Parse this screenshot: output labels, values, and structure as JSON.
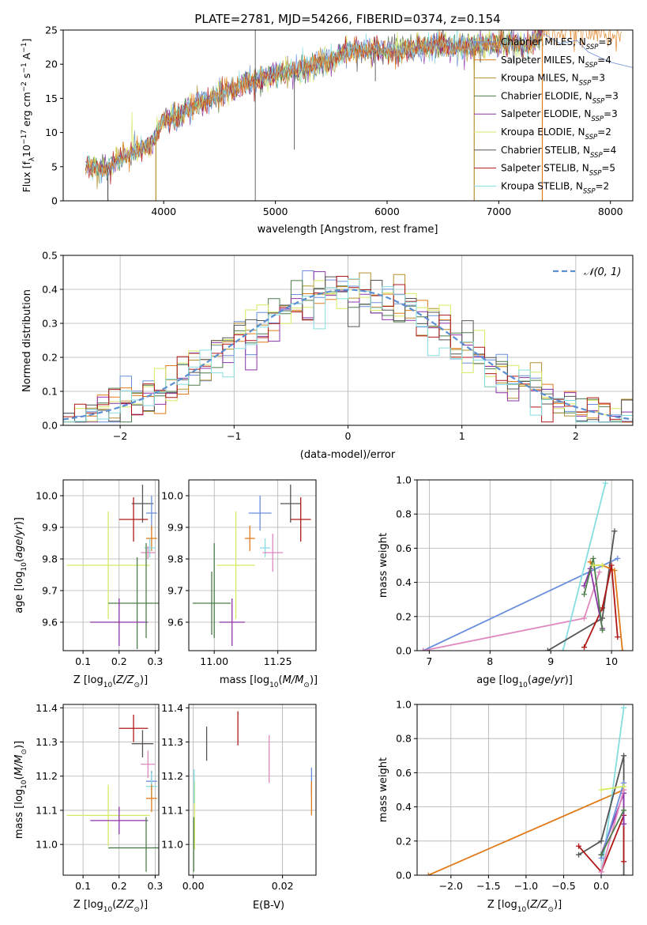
{
  "figure": {
    "title": "PLATE=2781, MJD=54266, FIBERID=0374, z=0.154"
  },
  "legend_entries": [
    {
      "label": "Chabrier MILES, N",
      "sub": "SSP",
      "suffix": "=3",
      "color": "#6a8fdc"
    },
    {
      "label": "Salpeter MILES, N",
      "sub": "SSP",
      "suffix": "=4",
      "color": "#e07b1a"
    },
    {
      "label": "Kroupa MILES, N",
      "sub": "SSP",
      "suffix": "=3",
      "color": "#b5902e"
    },
    {
      "label": "Chabrier ELODIE, N",
      "sub": "SSP",
      "suffix": "=3",
      "color": "#4d7d4a"
    },
    {
      "label": "Salpeter ELODIE, N",
      "sub": "SSP",
      "suffix": "=3",
      "color": "#8e35a8"
    },
    {
      "label": "Kroupa ELODIE, N",
      "sub": "SSP",
      "suffix": "=2",
      "color": "#d6ea64"
    },
    {
      "label": "Chabrier STELIB, N",
      "sub": "SSP",
      "suffix": "=4",
      "color": "#555555"
    },
    {
      "label": "Salpeter STELIB, N",
      "sub": "SSP",
      "suffix": "=5",
      "color": "#b01818"
    },
    {
      "label": "Kroupa STELIB, N",
      "sub": "SSP",
      "suffix": "=2",
      "color": "#86dde0"
    }
  ],
  "extra_colors": {
    "pink": "#e088bf"
  },
  "chart_data": [
    {
      "id": "spectrum",
      "type": "line",
      "xlabel": "wavelength [Angstrom, rest frame]",
      "ylabel_parts": [
        "Flux [f",
        "λ",
        "10",
        "−17",
        " erg cm",
        "−2",
        " s",
        "−1",
        " A",
        "−1",
        "]"
      ],
      "xlim": [
        3100,
        8200
      ],
      "ylim": [
        0,
        25
      ],
      "xticks": [
        4000,
        5000,
        6000,
        7000,
        8000
      ],
      "yticks": [
        0,
        5,
        10,
        15,
        20,
        25
      ],
      "grid": false,
      "legend": "top-right",
      "continuum": {
        "x": [
          3300,
          3500,
          3700,
          3900,
          4000,
          4100,
          4300,
          4500,
          4700,
          4900,
          5100,
          5300,
          5500,
          5700,
          5900,
          6100,
          6300,
          6500,
          6700,
          6900,
          7100,
          7250,
          7400
        ],
        "y": [
          5,
          4.8,
          6.8,
          8.5,
          12,
          12.3,
          14,
          15.5,
          17,
          18,
          18.8,
          19.5,
          21,
          22,
          22,
          22,
          22.5,
          22.8,
          22.5,
          23,
          23.2,
          22.5,
          24.5
        ]
      },
      "drops": [
        {
          "x": 3500,
          "to": 0
        },
        {
          "x": 3930,
          "to": 0
        },
        {
          "x": 6780,
          "to": 0
        },
        {
          "x": 7390,
          "to": 0
        }
      ],
      "spike_lines": [
        {
          "x": 4820,
          "from": 0,
          "to": 25
        }
      ],
      "absorption": [
        {
          "x": 5170,
          "to": 7.5
        },
        {
          "x": 5895,
          "to": 17.5
        }
      ]
    },
    {
      "id": "residuals",
      "type": "step",
      "xlabel": "(data-model)/error",
      "ylabel": "Normed distribution",
      "xlim": [
        -2.5,
        2.5
      ],
      "ylim": [
        0,
        0.5
      ],
      "xticks": [
        -2,
        -1,
        0,
        1,
        2
      ],
      "yticks": [
        0,
        0.1,
        0.2,
        0.3,
        0.4,
        0.5
      ],
      "grid": true,
      "legend": "top-right",
      "legend_label": "𝒩(0, 1)",
      "bin_width": 0.1
    },
    {
      "id": "age-vs-Z",
      "type": "errorbar",
      "xlabel": "Z [log10(Z/Z⊙)]",
      "ylabel": "age  [log10(age/yr)]",
      "xlim": [
        0.045,
        0.31
      ],
      "ylim": [
        9.51,
        10.05
      ],
      "xticks": [
        0.1,
        0.2,
        0.3
      ],
      "yticks": [
        9.6,
        9.7,
        9.8,
        9.9,
        10.0
      ],
      "points": [
        {
          "c": "#555555",
          "x": 0.265,
          "xe": 0.03,
          "y": 9.975,
          "ye": 0.06
        },
        {
          "c": "#b01818",
          "x": 0.24,
          "xe": 0.04,
          "y": 9.925,
          "ye": 0.07
        },
        {
          "c": "#6a8fdc",
          "x": 0.29,
          "xe": 0.015,
          "y": 9.945,
          "ye": 0.055
        },
        {
          "c": "#e07b1a",
          "x": 0.29,
          "xe": 0.015,
          "y": 9.865,
          "ye": 0.04
        },
        {
          "c": "#86dde0",
          "x": 0.285,
          "xe": 0.015,
          "y": 9.835,
          "ye": 0.03
        },
        {
          "c": "#e088bf",
          "x": 0.28,
          "xe": 0.02,
          "y": 9.82,
          "ye": 0.02
        },
        {
          "c": "#d6ea64",
          "x": 0.17,
          "xe": 0.115,
          "y": 9.78,
          "ye": 0.17
        },
        {
          "c": "#4d7d4a",
          "x": 0.25,
          "xe": 0.08,
          "y": 9.66,
          "ye": 0.145
        },
        {
          "c": "#8e35a8",
          "x": 0.2,
          "xe": 0.08,
          "y": 9.6,
          "ye": 0.075
        },
        {
          "c": "#4d7d4a",
          "x": 0.275,
          "xe": 0.0,
          "y": 9.7,
          "ye": 0.15
        }
      ]
    },
    {
      "id": "age-vs-mass",
      "type": "errorbar",
      "xlabel": "mass [log10(M/M⊙)]",
      "xlim": [
        10.9,
        11.4
      ],
      "ylim": [
        9.51,
        10.05
      ],
      "xticks": [
        11.0,
        11.25
      ],
      "yticks": [
        9.6,
        9.7,
        9.8,
        9.9,
        10.0
      ],
      "points": [
        {
          "c": "#555555",
          "x": 11.3,
          "xe": 0.04,
          "y": 9.975,
          "ye": 0.06
        },
        {
          "c": "#b01818",
          "x": 11.34,
          "xe": 0.04,
          "y": 9.925,
          "ye": 0.07
        },
        {
          "c": "#6a8fdc",
          "x": 11.18,
          "xe": 0.045,
          "y": 9.945,
          "ye": 0.055
        },
        {
          "c": "#e07b1a",
          "x": 11.14,
          "xe": 0.02,
          "y": 9.865,
          "ye": 0.04
        },
        {
          "c": "#86dde0",
          "x": 11.2,
          "xe": 0.02,
          "y": 9.835,
          "ye": 0.03
        },
        {
          "c": "#e088bf",
          "x": 11.23,
          "xe": 0.04,
          "y": 9.82,
          "ye": 0.06
        },
        {
          "c": "#d6ea64",
          "x": 11.085,
          "xe": 0.075,
          "y": 9.78,
          "ye": 0.17
        },
        {
          "c": "#4d7d4a",
          "x": 10.99,
          "xe": 0.075,
          "y": 9.66,
          "ye": 0.1
        },
        {
          "c": "#8e35a8",
          "x": 11.07,
          "xe": 0.05,
          "y": 9.6,
          "ye": 0.075
        },
        {
          "c": "#4d7d4a",
          "x": 11.0,
          "xe": 0.0,
          "y": 9.7,
          "ye": 0.15
        }
      ]
    },
    {
      "id": "weight-vs-age",
      "type": "line",
      "xlabel": "age  [log10(age/yr)]",
      "ylabel": "mass weight",
      "xlim": [
        6.8,
        10.35
      ],
      "ylim": [
        0,
        1
      ],
      "xticks": [
        7,
        8,
        9,
        10
      ],
      "yticks": [
        0.0,
        0.2,
        0.4,
        0.6,
        0.8,
        1.0
      ],
      "grid": true,
      "series": [
        {
          "c": "#6a8fdc",
          "x": [
            6.9,
            10.1
          ],
          "y": [
            0.0,
            0.54
          ]
        },
        {
          "c": "#e088bf",
          "x": [
            6.9,
            9.55,
            9.8
          ],
          "y": [
            0.0,
            0.19,
            0.46
          ]
        },
        {
          "c": "#86dde0",
          "x": [
            9.2,
            9.9
          ],
          "y": [
            0.0,
            0.98
          ]
        },
        {
          "c": "#555555",
          "x": [
            8.95,
            9.85,
            10.05
          ],
          "y": [
            0.0,
            0.19,
            0.7
          ]
        },
        {
          "c": "#e07b1a",
          "x": [
            9.65,
            9.7,
            9.85,
            10.05,
            10.18
          ],
          "y": [
            0.52,
            0.5,
            0.5,
            0.47,
            0.0
          ]
        },
        {
          "c": "#b01818",
          "x": [
            9.55,
            9.85,
            10.0,
            10.1
          ],
          "y": [
            0.02,
            0.25,
            0.5,
            0.08
          ]
        },
        {
          "c": "#8e35a8",
          "x": [
            9.55,
            9.65,
            9.85
          ],
          "y": [
            0.38,
            0.48,
            0.13
          ]
        },
        {
          "c": "#4d7d4a",
          "x": [
            9.55,
            9.7,
            9.85
          ],
          "y": [
            0.33,
            0.54,
            0.12
          ]
        },
        {
          "c": "#d6ea64",
          "x": [
            9.7,
            9.85
          ],
          "y": [
            0.5,
            0.5
          ]
        }
      ]
    },
    {
      "id": "mass-vs-Z",
      "type": "errorbar",
      "xlabel": "Z [log10(Z/Z⊙)]",
      "ylabel": "mass [log10(M/M⊙)]",
      "xlim": [
        0.045,
        0.31
      ],
      "ylim": [
        10.91,
        11.41
      ],
      "xticks": [
        0.1,
        0.2,
        0.3
      ],
      "yticks": [
        11.0,
        11.1,
        11.2,
        11.3,
        11.4
      ],
      "points": [
        {
          "c": "#b01818",
          "x": 0.24,
          "xe": 0.04,
          "y": 11.34,
          "ye": 0.04
        },
        {
          "c": "#555555",
          "x": 0.265,
          "xe": 0.03,
          "y": 11.295,
          "ye": 0.04
        },
        {
          "c": "#e088bf",
          "x": 0.28,
          "xe": 0.02,
          "y": 11.235,
          "ye": 0.04
        },
        {
          "c": "#6a8fdc",
          "x": 0.29,
          "xe": 0.015,
          "y": 11.185,
          "ye": 0.03
        },
        {
          "c": "#86dde0",
          "x": 0.29,
          "xe": 0.015,
          "y": 11.17,
          "ye": 0.04
        },
        {
          "c": "#e07b1a",
          "x": 0.29,
          "xe": 0.015,
          "y": 11.135,
          "ye": 0.04
        },
        {
          "c": "#d6ea64",
          "x": 0.17,
          "xe": 0.115,
          "y": 11.085,
          "ye": 0.09
        },
        {
          "c": "#8e35a8",
          "x": 0.2,
          "xe": 0.08,
          "y": 11.07,
          "ye": 0.04
        },
        {
          "c": "#4d7d4a",
          "x": 0.24,
          "xe": 0.07,
          "y": 10.99,
          "ye": 0.0
        },
        {
          "c": "#4d7d4a",
          "x": 0.275,
          "xe": 0.0,
          "y": 11.0,
          "ye": 0.08
        }
      ]
    },
    {
      "id": "mass-vs-ebv",
      "type": "errorbar",
      "xlabel": "E(B-V)",
      "xlim": [
        -0.001,
        0.0275
      ],
      "ylim": [
        10.91,
        11.41
      ],
      "xticks": [
        0.0,
        0.02
      ],
      "yticks": [
        11.0,
        11.1,
        11.2,
        11.3,
        11.4
      ],
      "points": [
        {
          "c": "#b01818",
          "x": 0.01,
          "xe": 0,
          "y": 11.34,
          "ye": 0.05
        },
        {
          "c": "#555555",
          "x": 0.003,
          "xe": 0,
          "y": 11.295,
          "ye": 0.05
        },
        {
          "c": "#e088bf",
          "x": 0.017,
          "xe": 0,
          "y": 11.25,
          "ye": 0.07
        },
        {
          "c": "#6a8fdc",
          "x": 0.0265,
          "xe": 0,
          "y": 11.185,
          "ye": 0.04
        },
        {
          "c": "#e07b1a",
          "x": 0.0265,
          "xe": 0,
          "y": 11.135,
          "ye": 0.05
        },
        {
          "c": "#d6ea64",
          "x": 0.0003,
          "xe": 0,
          "y": 11.085,
          "ye": 0.1
        },
        {
          "c": "#4d7d4a",
          "x": 0.0001,
          "xe": 0,
          "y": 11.0,
          "ye": 0.08
        },
        {
          "c": "#86dde0",
          "x": 0.0002,
          "xe": 0,
          "y": 11.17,
          "ye": 0.05
        }
      ]
    },
    {
      "id": "weight-vs-Z",
      "type": "line",
      "xlabel": "Z [log10(Z/Z⊙)]",
      "ylabel": "mass weight",
      "xlim": [
        -2.45,
        0.42
      ],
      "ylim": [
        0,
        1
      ],
      "xticks": [
        -2.0,
        -1.5,
        -1.0,
        -0.5,
        0.0
      ],
      "yticks": [
        0.0,
        0.2,
        0.4,
        0.6,
        0.8,
        1.0
      ],
      "grid": true,
      "series": [
        {
          "c": "#e07b1a",
          "x": [
            -2.3,
            0.3
          ],
          "y": [
            0.0,
            0.5
          ]
        },
        {
          "c": "#86dde0",
          "x": [
            0.0,
            0.3
          ],
          "y": [
            0.0,
            0.98
          ]
        },
        {
          "c": "#555555",
          "x": [
            -0.3,
            0.0,
            0.3,
            0.3
          ],
          "y": [
            0.12,
            0.2,
            0.7,
            0.0
          ]
        },
        {
          "c": "#b01818",
          "x": [
            -0.3,
            0.0,
            0.3,
            0.3
          ],
          "y": [
            0.17,
            0.02,
            0.35,
            0.08
          ]
        },
        {
          "c": "#8e35a8",
          "x": [
            0.0,
            0.3,
            0.3
          ],
          "y": [
            0.12,
            0.48,
            0.3
          ]
        },
        {
          "c": "#e088bf",
          "x": [
            0.0,
            0.3
          ],
          "y": [
            0.02,
            0.5
          ]
        },
        {
          "c": "#6a8fdc",
          "x": [
            0.0,
            0.3
          ],
          "y": [
            0.1,
            0.54
          ]
        },
        {
          "c": "#d6ea64",
          "x": [
            0.0,
            0.3
          ],
          "y": [
            0.5,
            0.52
          ]
        },
        {
          "c": "#4d7d4a",
          "x": [
            0.0,
            0.3
          ],
          "y": [
            0.12,
            0.38
          ]
        }
      ]
    }
  ]
}
